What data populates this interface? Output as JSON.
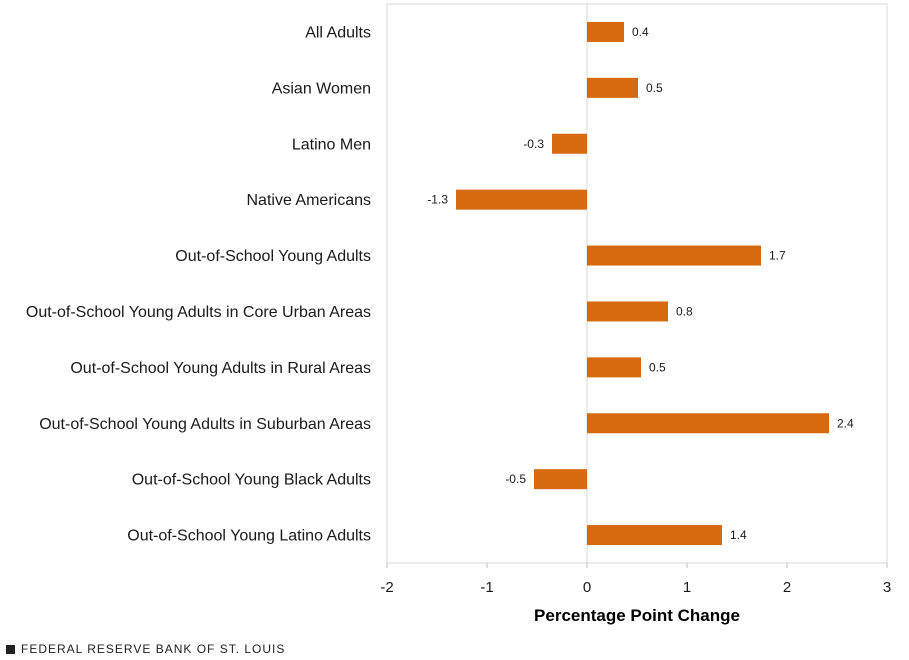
{
  "chart_data": {
    "type": "bar",
    "orientation": "horizontal",
    "categories": [
      "All Adults",
      "Asian Women",
      "Latino Men",
      "Native Americans",
      "Out-of-School Young Adults",
      "Out-of-School Young Adults in Core Urban Areas",
      "Out-of-School Young Adults in Rural Areas",
      "Out-of-School Young Adults in Suburban Areas",
      "Out-of-School Young Black Adults",
      "Out-of-School Young Latino Adults"
    ],
    "values": [
      0.37,
      0.51,
      -0.35,
      -1.31,
      1.74,
      0.81,
      0.54,
      2.42,
      -0.53,
      1.35
    ],
    "value_labels": [
      "0.4",
      "0.5",
      "-0.3",
      "-1.3",
      "1.7",
      "0.8",
      "0.5",
      "2.4",
      "-0.5",
      "1.4"
    ],
    "xlabel": "Percentage Point Change",
    "xlim": [
      -2,
      3
    ],
    "xticks": [
      "-2",
      "-1",
      "0",
      "1",
      "2",
      "3"
    ],
    "bar_color": "#d7690f",
    "grid": false
  },
  "footer": {
    "source": "FEDERAL RESERVE BANK OF ST. LOUIS"
  }
}
